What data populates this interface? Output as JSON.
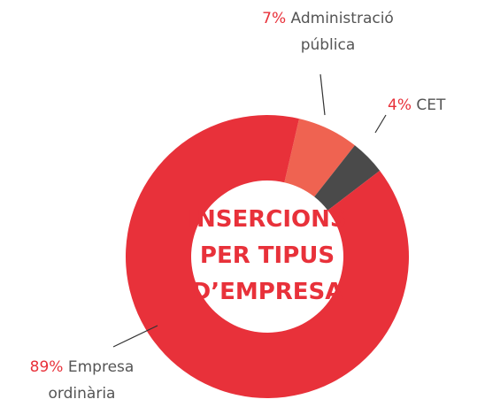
{
  "chart_data": {
    "type": "donut",
    "title": "INSERCIONS PER TIPUS D’EMPRESA",
    "categories": [
      "Administració pública",
      "CET",
      "Empresa ordinària"
    ],
    "values": [
      7,
      4,
      89
    ],
    "value_labels": [
      "7%",
      "4%",
      "89%"
    ],
    "colors": [
      "#ef6351",
      "#4a4a4a",
      "#e8313a"
    ]
  }
}
